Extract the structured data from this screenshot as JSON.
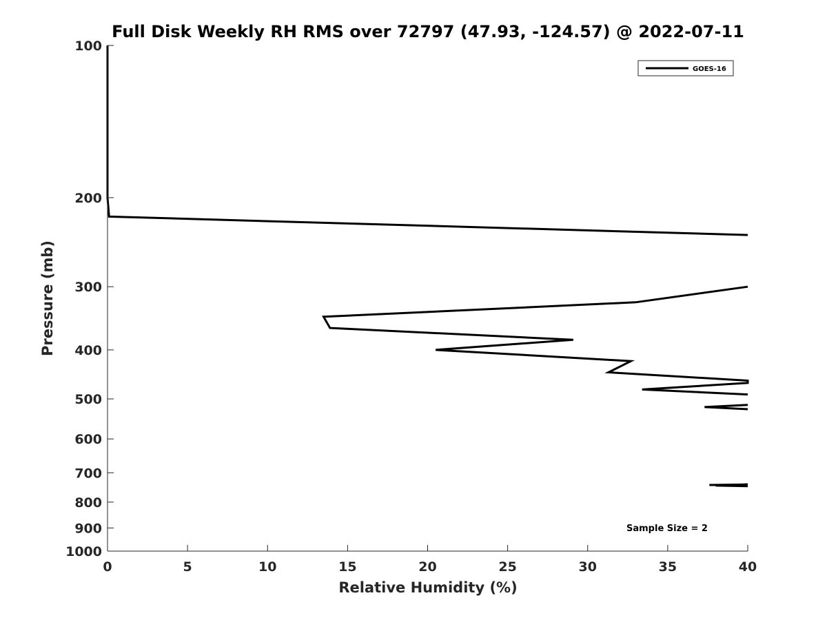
{
  "chart_data": {
    "type": "line",
    "title": "Full Disk Weekly RH RMS over 72797 (47.93, -124.57) @ 2022-07-11",
    "xlabel": "Relative Humidity (%)",
    "ylabel": "Pressure (mb)",
    "xlim": [
      0,
      40
    ],
    "ylim": [
      100,
      1000
    ],
    "y_scale": "log",
    "y_reversed": true,
    "grid": false,
    "legend_position": "top-right",
    "x_ticks": [
      0,
      5,
      10,
      15,
      20,
      25,
      30,
      35,
      40
    ],
    "x_tick_labels": [
      "0",
      "5",
      "10",
      "15",
      "20",
      "25",
      "30",
      "35",
      "40"
    ],
    "y_ticks": [
      100,
      200,
      300,
      400,
      500,
      600,
      700,
      800,
      900,
      1000
    ],
    "y_tick_labels": [
      "100",
      "200",
      "300",
      "400",
      "500",
      "600",
      "700",
      "800",
      "900",
      "1000"
    ],
    "annotation": "Sample Size = 2",
    "series": [
      {
        "name": "GOES-16",
        "color": "#000000",
        "segments": [
          [
            {
              "x": 0.0,
              "y": 100
            },
            {
              "x": 0.0,
              "y": 150
            },
            {
              "x": 0.0,
              "y": 200
            },
            {
              "x": 0.1,
              "y": 218
            },
            {
              "x": 40.0,
              "y": 237
            }
          ],
          [
            {
              "x": 40.0,
              "y": 300
            },
            {
              "x": 33.0,
              "y": 322
            },
            {
              "x": 13.5,
              "y": 344
            },
            {
              "x": 13.9,
              "y": 362
            },
            {
              "x": 29.1,
              "y": 382
            },
            {
              "x": 20.5,
              "y": 400
            },
            {
              "x": 32.7,
              "y": 421
            },
            {
              "x": 31.3,
              "y": 443
            },
            {
              "x": 40.0,
              "y": 460
            },
            {
              "x": 40.0,
              "y": 465
            },
            {
              "x": 33.4,
              "y": 479
            },
            {
              "x": 40.0,
              "y": 490
            }
          ],
          [
            {
              "x": 40.0,
              "y": 514
            },
            {
              "x": 37.3,
              "y": 519
            },
            {
              "x": 40.0,
              "y": 524
            }
          ],
          [
            {
              "x": 37.6,
              "y": 740
            },
            {
              "x": 40.0,
              "y": 738
            },
            {
              "x": 38.0,
              "y": 742
            },
            {
              "x": 40.0,
              "y": 744
            }
          ]
        ]
      }
    ]
  }
}
